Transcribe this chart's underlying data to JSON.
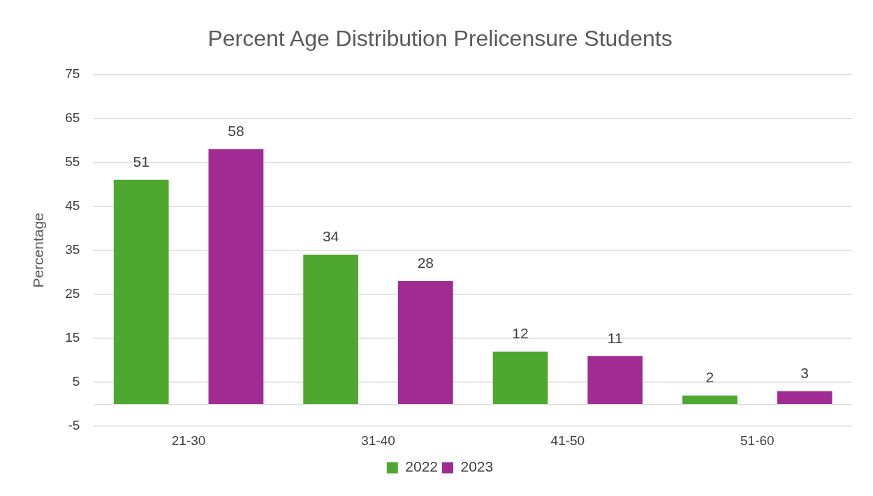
{
  "chart_data": {
    "type": "bar",
    "title": "Percent Age Distribution Prelicensure Students",
    "ylabel": "Percentage",
    "categories": [
      "21-30",
      "31-40",
      "41-50",
      "51-60"
    ],
    "series": [
      {
        "name": "2022",
        "color": "#4ea72e",
        "values": [
          51,
          34,
          12,
          2
        ]
      },
      {
        "name": "2023",
        "color": "#a02b93",
        "values": [
          58,
          28,
          11,
          3
        ]
      }
    ],
    "ylim": [
      -5,
      75
    ],
    "yticks": [
      -5,
      5,
      15,
      25,
      35,
      45,
      55,
      65,
      75
    ],
    "grid": "y",
    "legend": "bottom",
    "data_labels": true
  }
}
